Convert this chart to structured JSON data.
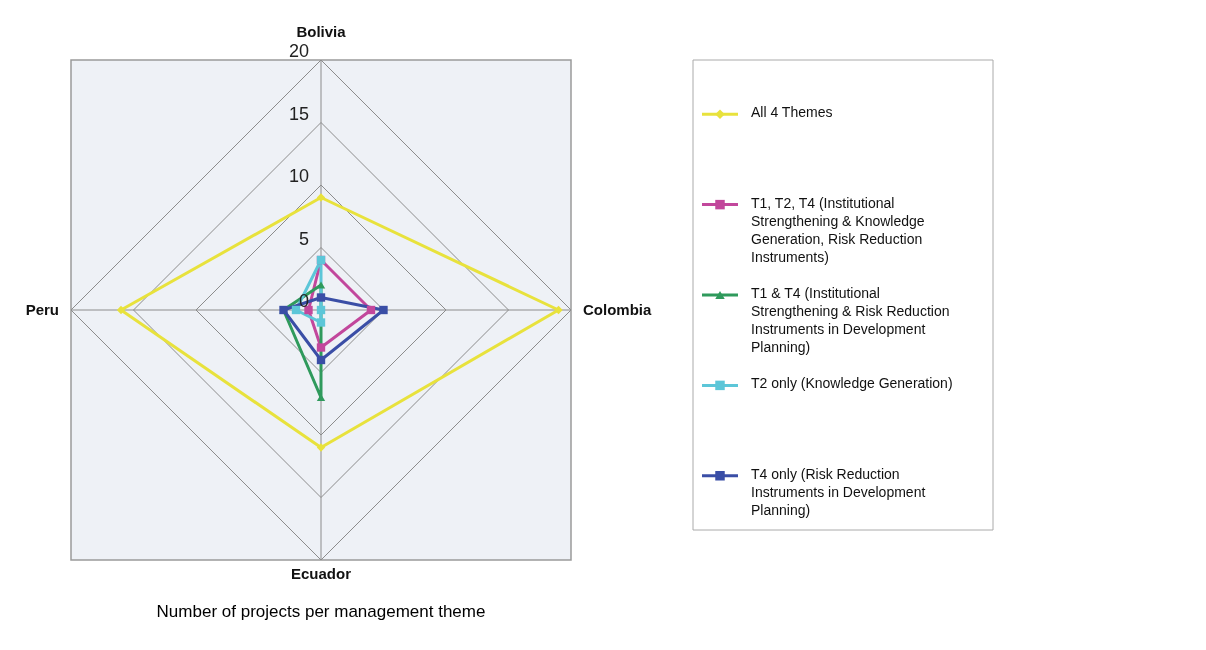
{
  "chart_data": {
    "type": "radar",
    "title": "Number of projects per management theme",
    "categories": [
      "Bolivia",
      "Colombia",
      "Ecuador",
      "Peru"
    ],
    "ylim": [
      0,
      20
    ],
    "yticks": [
      0,
      5,
      10,
      15,
      20
    ],
    "grid": true,
    "legend": "right",
    "series": [
      {
        "name": "All 4 Themes",
        "color": "#e8e23c",
        "marker": "diamond",
        "values": [
          9,
          19,
          11,
          16
        ]
      },
      {
        "name": "T1, T2, T4 (Institutional Strengthening & Knowledge Generation, Risk Reduction Instruments)",
        "color": "#c2479c",
        "marker": "square",
        "values": [
          4,
          4,
          3,
          1
        ]
      },
      {
        "name": "T1 & T4 (Institutional Strengthening & Risk Reduction Instruments in Development Planning)",
        "color": "#2f9a5c",
        "marker": "triangle",
        "values": [
          2,
          0,
          7,
          3
        ]
      },
      {
        "name": "T2 only (Knowledge Generation)",
        "color": "#5cc6d8",
        "marker": "square",
        "values": [
          4,
          0,
          1,
          2
        ]
      },
      {
        "name": "T4 only (Risk Reduction Instruments in Development Planning)",
        "color": "#3a4ea6",
        "marker": "square",
        "values": [
          1,
          5,
          4,
          3
        ]
      }
    ]
  }
}
